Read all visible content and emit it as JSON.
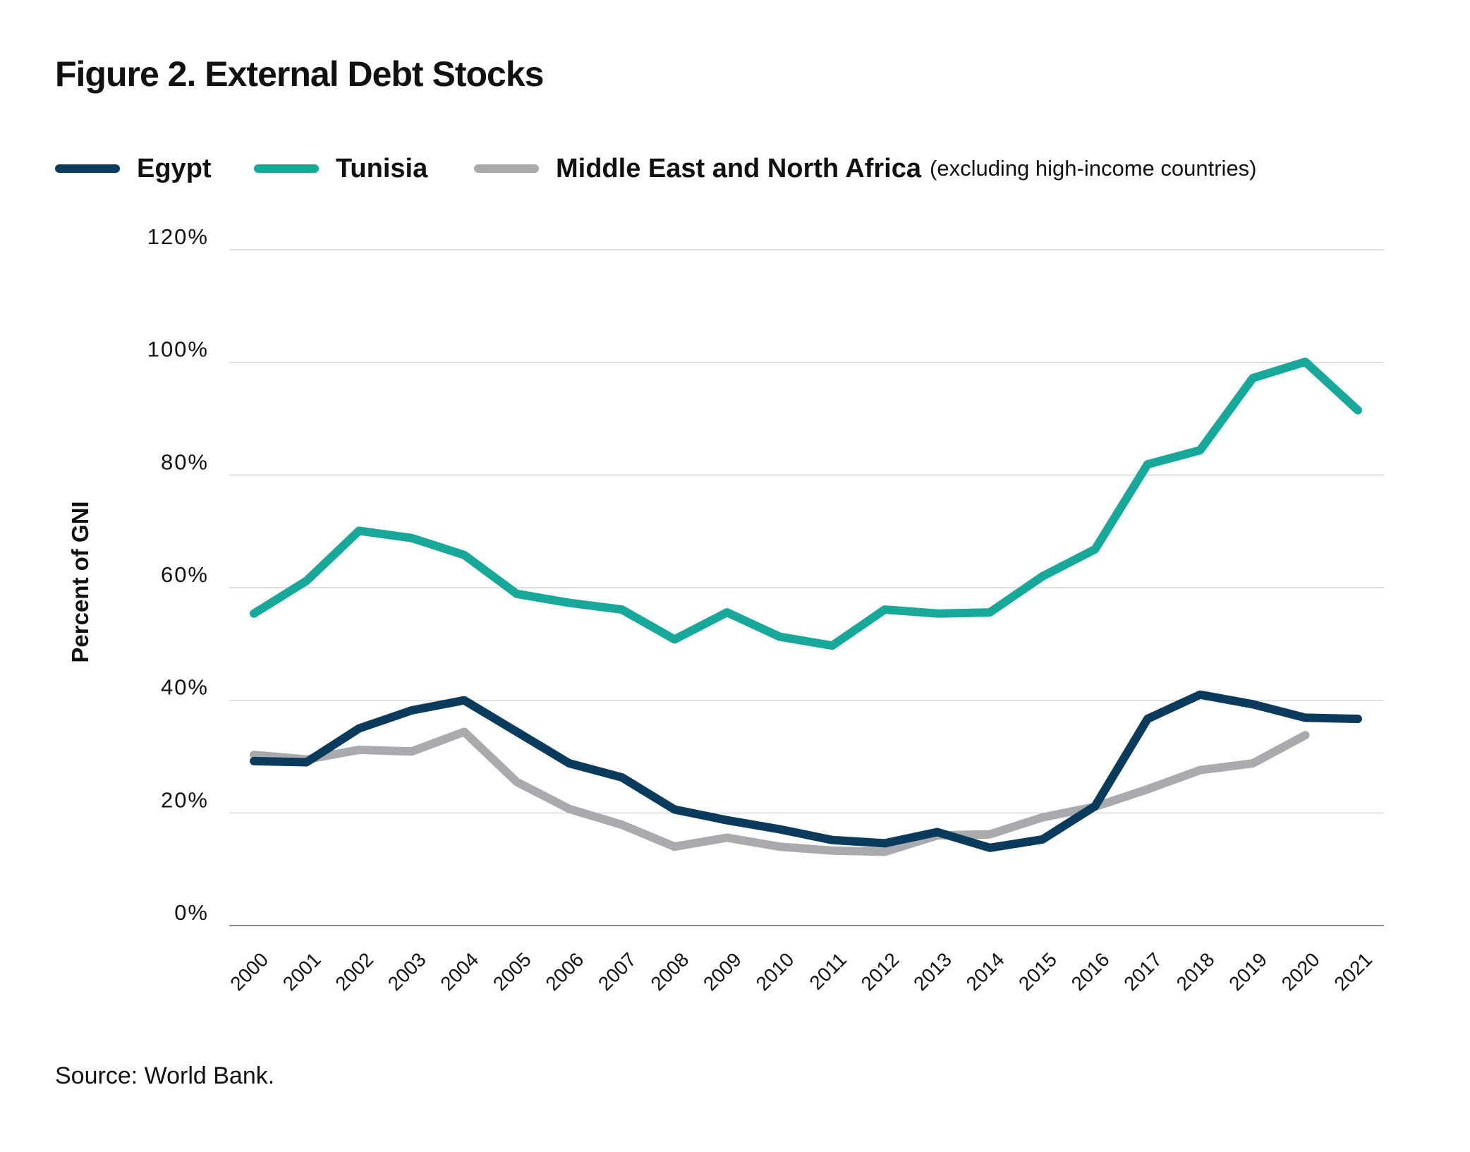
{
  "title": "Figure 2. External Debt Stocks",
  "source": "Source: World Bank.",
  "legend": [
    {
      "label": "Egypt",
      "note": "",
      "color": "#0a3a5c"
    },
    {
      "label": "Tunisia",
      "note": "",
      "color": "#17a89a"
    },
    {
      "label": "Middle East and North Africa",
      "note": "(excluding high-income countries)",
      "color": "#a8aaad"
    }
  ],
  "chart_data": {
    "type": "line",
    "title": "Figure 2. External Debt Stocks",
    "xlabel": "",
    "ylabel": "Percent of GNI",
    "ylim": [
      0,
      120
    ],
    "y_ticks": [
      "0%",
      "20%",
      "40%",
      "60%",
      "80%",
      "100%",
      "120%"
    ],
    "grid": true,
    "legend_position": "top",
    "categories": [
      "2000",
      "2001",
      "2002",
      "2003",
      "2004",
      "2005",
      "2006",
      "2007",
      "2008",
      "2009",
      "2010",
      "2011",
      "2012",
      "2013",
      "2014",
      "2015",
      "2016",
      "2017",
      "2018",
      "2019",
      "2020",
      "2021"
    ],
    "series": [
      {
        "name": "Egypt",
        "color": "#0a3a5c",
        "values": [
          29.2,
          29.0,
          35.0,
          38.2,
          40.0,
          34.4,
          28.8,
          26.3,
          20.6,
          18.7,
          17.1,
          15.2,
          14.6,
          16.6,
          13.8,
          15.3,
          21.2,
          36.7,
          41.0,
          39.3,
          36.9,
          36.7
        ]
      },
      {
        "name": "Tunisia",
        "color": "#17a89a",
        "values": [
          55.4,
          61.2,
          70.1,
          68.8,
          65.8,
          58.9,
          57.3,
          56.1,
          50.8,
          55.6,
          51.3,
          49.7,
          56.1,
          55.4,
          55.6,
          62.0,
          66.8,
          81.9,
          84.4,
          97.2,
          100.1,
          91.5
        ]
      },
      {
        "name": "Middle East and North Africa",
        "color": "#a8aaad",
        "values": [
          30.3,
          29.5,
          31.2,
          30.9,
          34.4,
          25.5,
          20.7,
          17.9,
          14.0,
          15.6,
          14.0,
          13.3,
          13.1,
          16.0,
          16.2,
          19.2,
          21.1,
          24.2,
          27.6,
          28.8,
          33.8,
          null
        ]
      }
    ]
  }
}
